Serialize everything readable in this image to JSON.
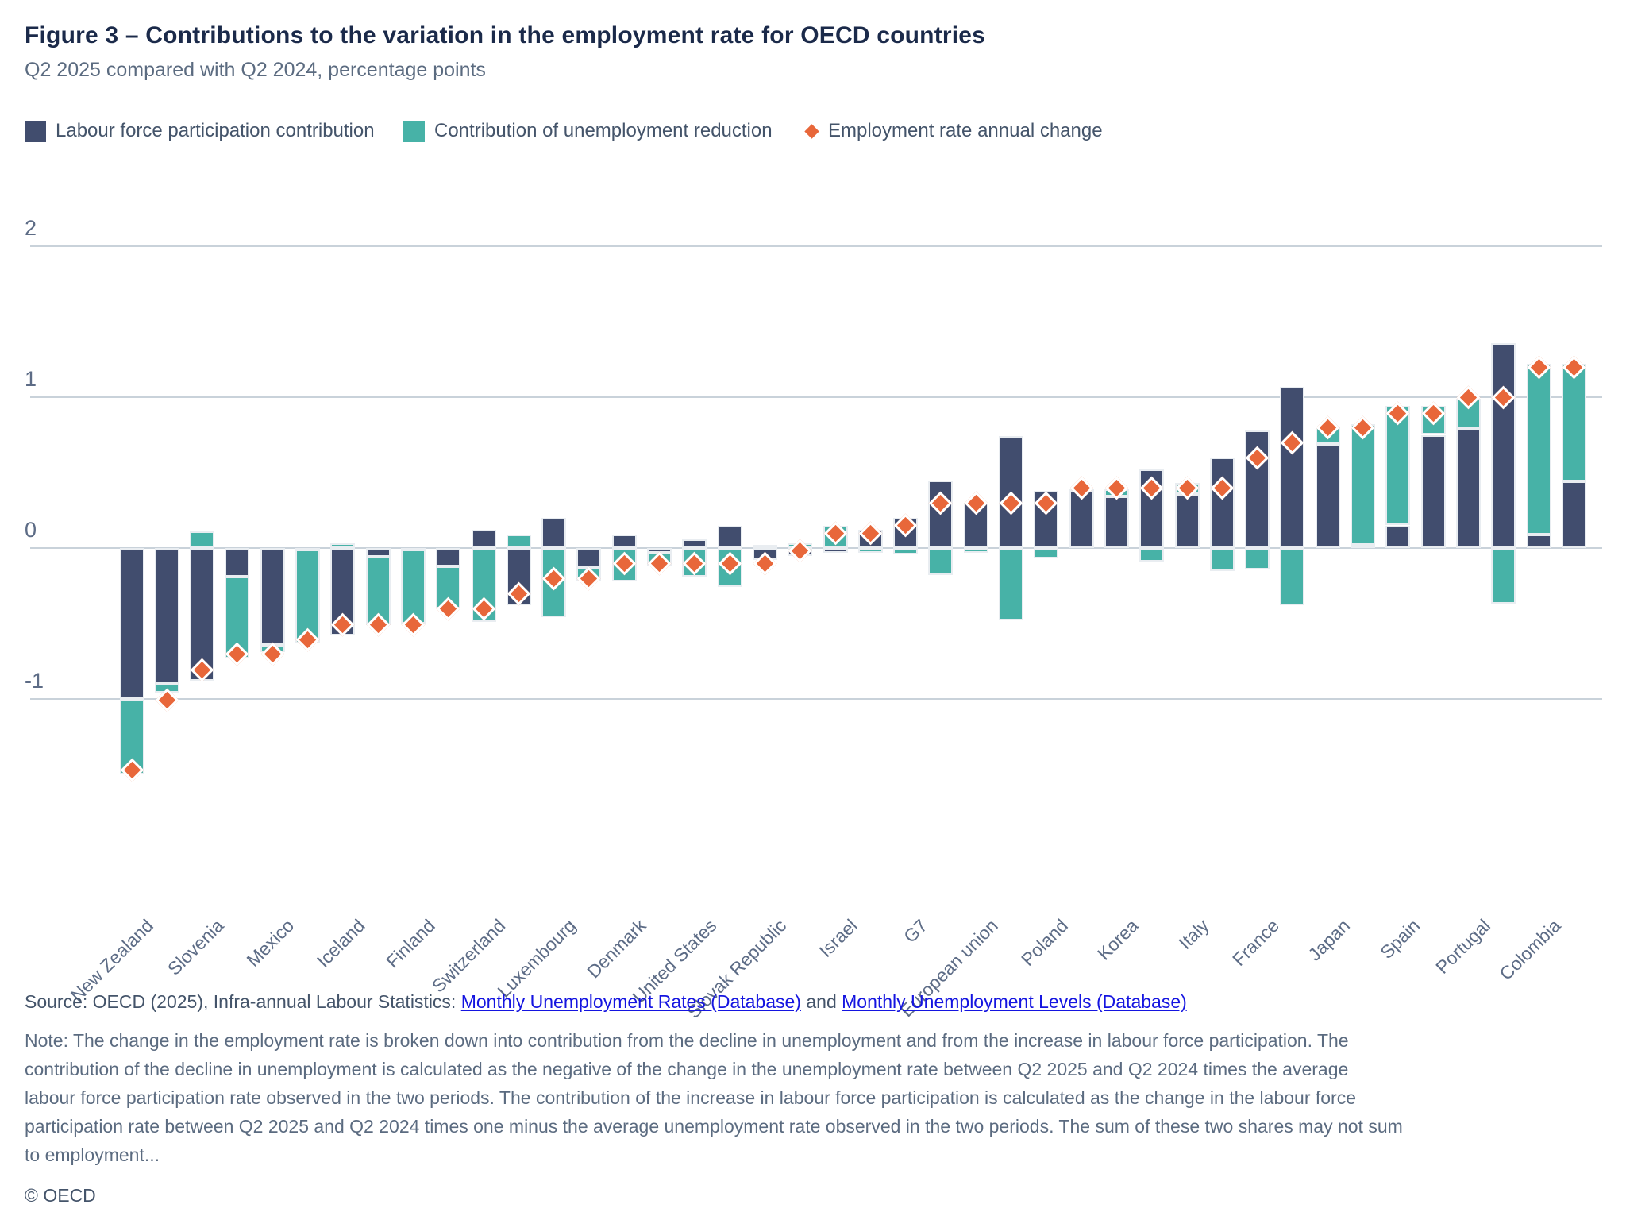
{
  "header": {
    "title": "Figure 3 – Contributions to the variation in the employment rate for OECD countries",
    "subtitle": "Q2 2025 compared with Q2 2024, percentage points"
  },
  "legend": {
    "lfp_label": "Labour force participation contribution",
    "unemployment_label": "Contribution of unemployment reduction",
    "marker_label": "Employment rate annual change"
  },
  "colors": {
    "lfp": "#414d6e",
    "unemployment": "#47b2a7",
    "marker": "#e8673a",
    "title": "#1b2a4a",
    "text": "#5b6b80",
    "gridline": "#c9d2da",
    "link": "#1414e0"
  },
  "chart_data": {
    "type": "bar",
    "stacked": true,
    "grid": true,
    "legend_position": "top",
    "ylim": [
      -1.6,
      2.1
    ],
    "yticks": [
      2,
      1,
      0,
      -1
    ],
    "xlabel": "",
    "ylabel": "",
    "categories": [
      "New Zealand",
      "",
      "Slovenia",
      "",
      "Mexico",
      "",
      "Iceland",
      "",
      "Finland",
      "",
      "Switzerland",
      "",
      "Luxembourg",
      "",
      "Denmark",
      "",
      "United States",
      "",
      "Slovak Republic",
      "",
      "Israel",
      "",
      "G7",
      "",
      "European union",
      "",
      "Poland",
      "",
      "Korea",
      "",
      "Italy",
      "",
      "France",
      "",
      "Japan",
      "",
      "Spain",
      "",
      "Portugal",
      "",
      "Colombia",
      ""
    ],
    "series": [
      {
        "name": "Labour force participation contribution",
        "values": [
          -1.0,
          -0.9,
          -0.88,
          -0.19,
          -0.64,
          -0.01,
          -0.58,
          -0.06,
          -0.01,
          -0.12,
          0.12,
          -0.38,
          0.2,
          -0.13,
          0.09,
          -0.03,
          0.06,
          0.15,
          -0.08,
          -0.05,
          -0.03,
          0.12,
          0.2,
          0.45,
          0.3,
          0.74,
          0.38,
          0.38,
          0.34,
          0.52,
          0.36,
          0.6,
          0.78,
          1.07,
          0.69,
          0.02,
          0.15,
          0.75,
          0.79,
          1.36,
          0.09,
          0.44
        ]
      },
      {
        "name": "Contribution of unemployment reduction",
        "values": [
          -0.5,
          -0.06,
          0.11,
          -0.54,
          -0.05,
          -0.62,
          0.03,
          -0.45,
          -0.49,
          -0.28,
          -0.49,
          0.09,
          -0.46,
          -0.09,
          -0.22,
          -0.09,
          -0.19,
          -0.26,
          0.02,
          0.03,
          0.15,
          -0.03,
          -0.04,
          -0.18,
          -0.03,
          -0.48,
          -0.07,
          0.01,
          0.05,
          -0.09,
          0.07,
          -0.15,
          -0.14,
          -0.38,
          0.11,
          0.8,
          0.79,
          0.19,
          0.2,
          -0.37,
          1.13,
          0.78
        ]
      }
    ],
    "markers": {
      "name": "Employment rate annual change",
      "values": [
        -1.47,
        -1.01,
        -0.81,
        -0.7,
        -0.7,
        -0.61,
        -0.51,
        -0.51,
        -0.51,
        -0.4,
        -0.4,
        -0.3,
        -0.2,
        -0.2,
        -0.1,
        -0.1,
        -0.1,
        -0.1,
        -0.1,
        -0.02,
        0.1,
        0.1,
        0.15,
        0.3,
        0.3,
        0.3,
        0.3,
        0.4,
        0.4,
        0.4,
        0.4,
        0.4,
        0.6,
        0.7,
        0.8,
        0.8,
        0.89,
        0.89,
        1.0,
        1.0,
        1.2,
        1.2
      ]
    }
  },
  "footer": {
    "source_prefix": "Source: OECD (2025), Infra-annual Labour Statistics:",
    "link1": "Monthly Unemployment Rates (Database)",
    "and_text": "and",
    "link2": "Monthly Unemployment Levels (Database)",
    "note_lines": [
      "Note: The change in the employment rate is broken down into contribution from the decline in unemployment and from the increase in labour force participation. The",
      "contribution of the decline in unemployment is calculated as the negative of the change in the unemployment rate between Q2 2025 and Q2 2024 times the average",
      "labour force participation rate observed in the two periods. The contribution of the increase in labour force participation is calculated as the change in the labour force",
      "participation rate between Q2 2025 and Q2 2024 times one minus the average unemployment rate observed in the two periods. The sum of these two shares may not sum",
      "to employment..."
    ],
    "copyright": "© OECD"
  }
}
